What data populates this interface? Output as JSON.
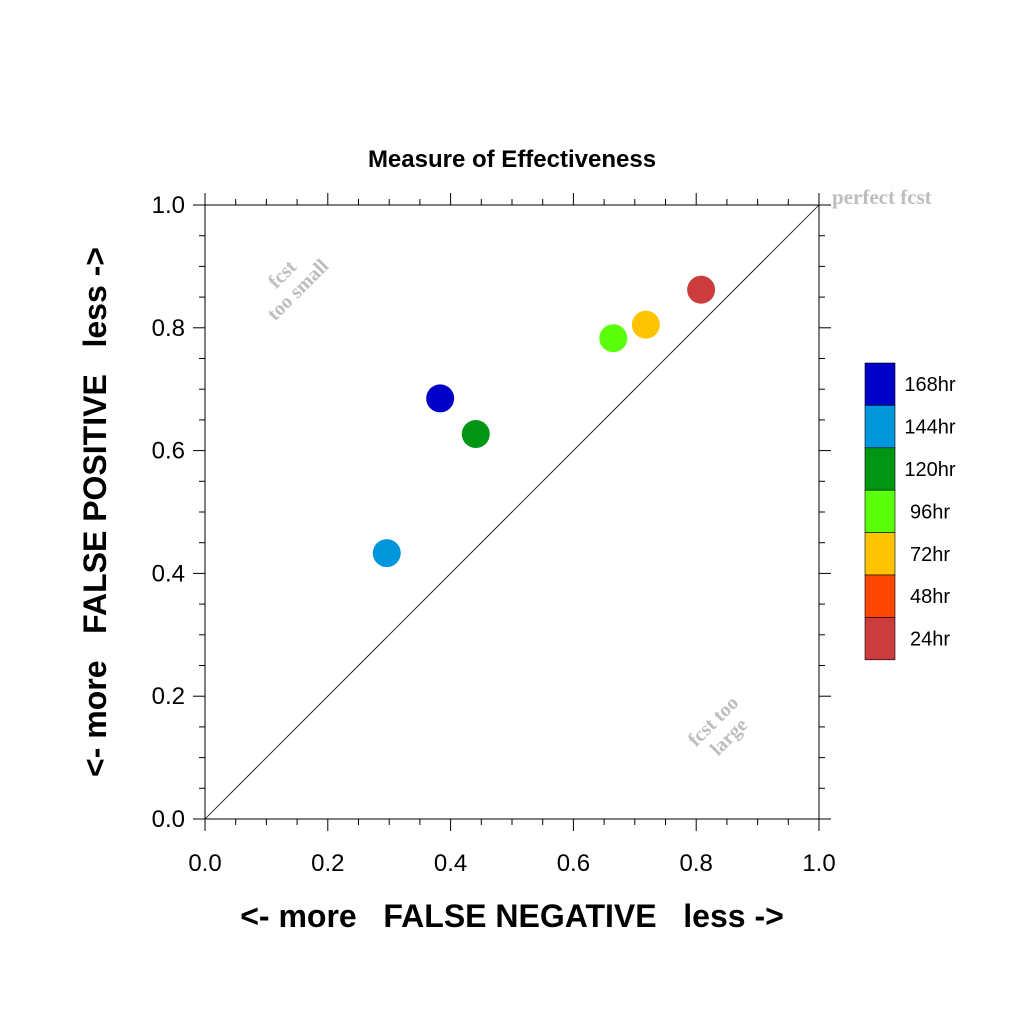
{
  "chart_data": {
    "type": "scatter",
    "title": "Measure of Effectiveness",
    "xlabel": "<- more   FALSE NEGATIVE   less ->",
    "ylabel": "<- more   FALSE POSITIVE   less ->",
    "xlim": [
      0.0,
      1.0
    ],
    "ylim": [
      0.0,
      1.0
    ],
    "x_ticks": [
      "0.0",
      "0.2",
      "0.4",
      "0.6",
      "0.8",
      "1.0"
    ],
    "y_ticks": [
      "0.0",
      "0.2",
      "0.4",
      "0.6",
      "0.8",
      "1.0"
    ],
    "grid": false,
    "diagonal_line": true,
    "annotations": {
      "perfect": "perfect fcst",
      "small_line1": "fcst",
      "small_line2": "too small",
      "large_line1": "fcst too",
      "large_line2": "large"
    },
    "legend_position": "right",
    "legend": [
      {
        "label": "168hr",
        "color": "#0000c8"
      },
      {
        "label": "144hr",
        "color": "#0096dc"
      },
      {
        "label": "120hr",
        "color": "#009614"
      },
      {
        "label": "96hr",
        "color": "#5aff0a"
      },
      {
        "label": "72hr",
        "color": "#ffc300"
      },
      {
        "label": "48hr",
        "color": "#ff4600"
      },
      {
        "label": "24hr",
        "color": "#cd3c3c"
      }
    ],
    "points": [
      {
        "series": "168hr",
        "x": 0.383,
        "y": 0.685,
        "color": "#0000c8"
      },
      {
        "series": "144hr",
        "x": 0.296,
        "y": 0.433,
        "color": "#0096dc"
      },
      {
        "series": "120hr",
        "x": 0.441,
        "y": 0.627,
        "color": "#009614"
      },
      {
        "series": "96hr",
        "x": 0.665,
        "y": 0.783,
        "color": "#5aff0a"
      },
      {
        "series": "72hr",
        "x": 0.718,
        "y": 0.805,
        "color": "#ffc300"
      },
      {
        "series": "24hr",
        "x": 0.808,
        "y": 0.862,
        "color": "#cd3c3c"
      }
    ]
  }
}
